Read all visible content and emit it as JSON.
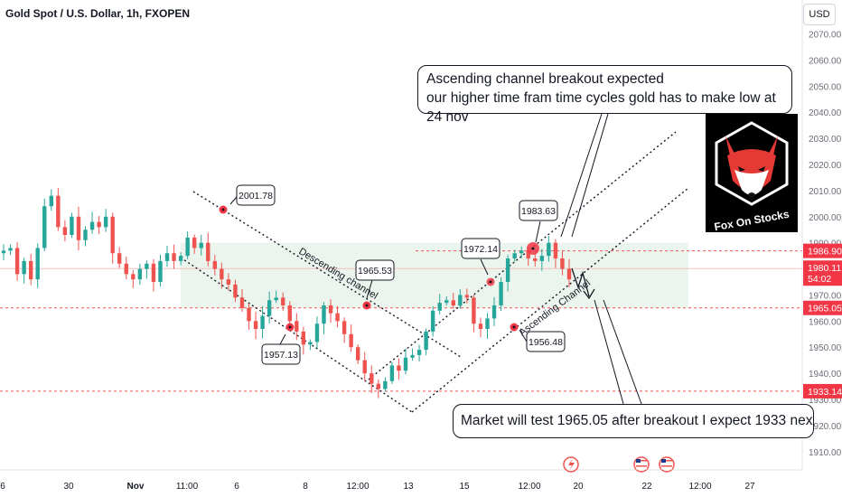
{
  "header": {
    "symbol_title": "Gold Spot / U.S. Dollar, 1h, FXOPEN",
    "currency_button": "USD"
  },
  "annotations": {
    "top_callout_line1": "Ascending channel breakout expected",
    "top_callout_line2": "our higher time fram time cycles gold has to make low at 24 nov",
    "bottom_callout": "Market will test 1965.05 after breakout I expect 1933 next level",
    "descending_channel_label": "Descending channel",
    "ascending_channel_label": "Ascending Channel",
    "logo_text": "Fox On Stocks"
  },
  "colors": {
    "up": "#26a69a",
    "down": "#ef5350",
    "zone": "#e7f3ea",
    "level_line": "#ef5350",
    "marker": "#f23645",
    "price_label_bg": "#f23645"
  },
  "icons": [
    "lightning-icon",
    "us-flag-icon",
    "us-flag-icon",
    "us-flag-icon"
  ],
  "chart_data": {
    "type": "candlestick",
    "title": "Gold Spot / U.S. Dollar, 1h, FXOPEN",
    "ylim": [
      1903,
      2083
    ],
    "y_ticks": [
      1910,
      1920,
      1930,
      1940,
      1950,
      1960,
      1970,
      1980,
      1990,
      2000,
      2010,
      2020,
      2030,
      2040,
      2050,
      2060,
      2070
    ],
    "x_ticks": [
      "6",
      "30",
      "Nov",
      "11:00",
      "6",
      "8",
      "12:00",
      "13",
      "15",
      "12:00",
      "20",
      "22",
      "12:00",
      "27"
    ],
    "price_labels": [
      {
        "value": "1986.90"
      },
      {
        "value": "1980.11",
        "countdown": "54:02"
      },
      {
        "value": "1965.05"
      },
      {
        "value": "1933.14"
      }
    ],
    "horizontal_levels": [
      1986.9,
      1980.11,
      1965.05,
      1933.14
    ],
    "swing_labels": [
      "2001.78",
      "1957.13",
      "1965.53",
      "1972.14",
      "1983.63",
      "1956.48"
    ],
    "close_path": [
      1987,
      1988,
      1978,
      1983,
      1976,
      1988,
      2004,
      2008,
      1996,
      1993,
      2000,
      1991,
      1995,
      1998,
      1996,
      2000,
      1986,
      1982,
      1978,
      1976,
      1980,
      1982,
      1975,
      1983,
      1986,
      1983,
      1985,
      1992,
      1988,
      1990,
      1983,
      1980,
      1976,
      1974,
      1969,
      1965,
      1960,
      1957,
      1962,
      1968,
      1969,
      1966,
      1960,
      1956,
      1951,
      1952,
      1959,
      1966,
      1963,
      1960,
      1955,
      1950,
      1945,
      1940,
      1936,
      1934,
      1937,
      1943,
      1941,
      1946,
      1947,
      1949,
      1956,
      1964,
      1967,
      1968,
      1966,
      1970,
      1969,
      1959,
      1957,
      1961,
      1966,
      1975,
      1984,
      1986,
      1987,
      1984,
      1983,
      1985,
      1990,
      1984,
      1980,
      1976
    ],
    "zone_range": [
      1965,
      1990
    ]
  }
}
